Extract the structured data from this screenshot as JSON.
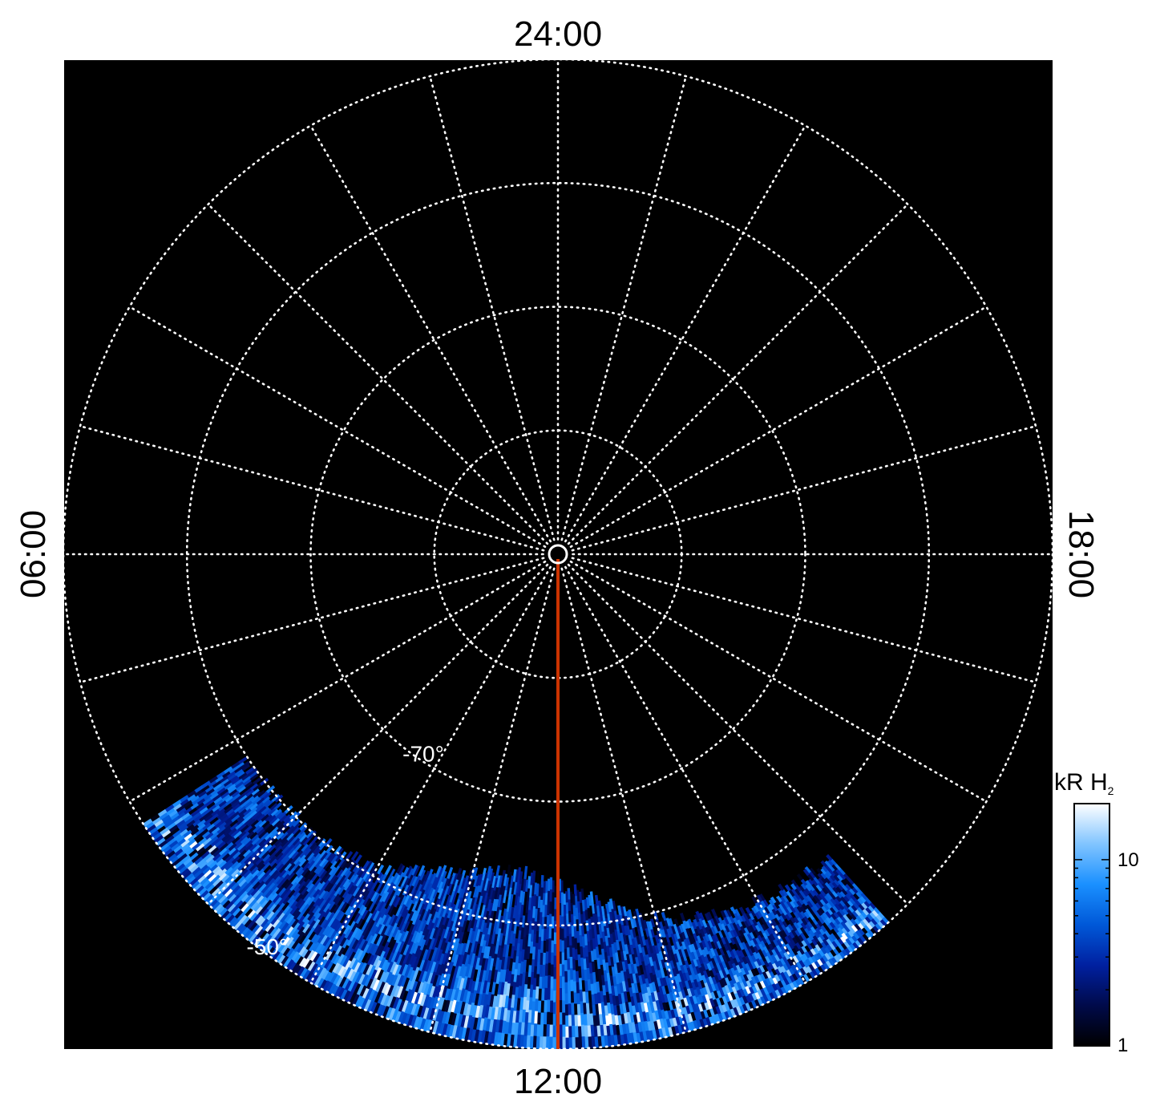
{
  "chart_data": {
    "type": "polar-heatmap",
    "title": "",
    "projection": "polar",
    "hemisphere": "south",
    "local_time_labels": {
      "top": "24:00",
      "bottom": "12:00",
      "left": "06:00",
      "right": "18:00"
    },
    "latitude_rings_deg": [
      -50,
      -60,
      -70,
      -80,
      -90
    ],
    "latitude_labels": [
      {
        "text": "-70°",
        "lat": -70,
        "lt_hours": 14.2
      },
      {
        "text": "-50°",
        "lat": -50,
        "lt_hours": 14.4
      }
    ],
    "meridian_spacing_hours": 1,
    "colatitude_max_deg": 40,
    "reference_line": {
      "color": "#cc3300",
      "lt_hours": 12,
      "lat_from": -90,
      "lat_to": -50
    },
    "colorbar": {
      "title": "kR H",
      "title_subscript": "2",
      "scale": "log",
      "range": [
        1,
        20
      ],
      "ticks": [
        "1",
        "10"
      ],
      "colormap": [
        "#000000",
        "#000a4a",
        "#0020a0",
        "#0058d8",
        "#1a90ff",
        "#80c4ff",
        "#ffffff"
      ]
    },
    "emission_region": {
      "lt_range_hours": [
        9.2,
        15.8
      ],
      "lat_range_deg": [
        -68,
        -50
      ],
      "intensity_range_kR": [
        1,
        20
      ]
    }
  }
}
